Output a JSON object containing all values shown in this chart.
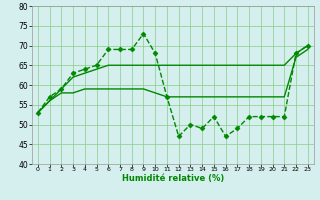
{
  "xlabel": "Humidité relative (%)",
  "xlim": [
    -0.5,
    23.5
  ],
  "ylim": [
    40,
    80
  ],
  "xticks": [
    0,
    1,
    2,
    3,
    4,
    5,
    6,
    7,
    8,
    9,
    10,
    11,
    12,
    13,
    14,
    15,
    16,
    17,
    18,
    19,
    20,
    21,
    22,
    23
  ],
  "yticks": [
    40,
    45,
    50,
    55,
    60,
    65,
    70,
    75,
    80
  ],
  "background_color": "#d5eeee",
  "grid_color": "#88cc88",
  "line_color": "#008800",
  "lines": [
    {
      "x": [
        0,
        1,
        2,
        3,
        4,
        5,
        6,
        7,
        8,
        9,
        10,
        11,
        12,
        13,
        14,
        15,
        16,
        17,
        18,
        19,
        20,
        21,
        22,
        23
      ],
      "y": [
        53,
        57,
        59,
        63,
        64,
        65,
        69,
        69,
        69,
        73,
        68,
        57,
        47,
        50,
        49,
        52,
        47,
        49,
        52,
        52,
        52,
        52,
        68,
        70
      ],
      "marker": "D",
      "markersize": 2.5,
      "linewidth": 1.0,
      "linestyle": "--"
    },
    {
      "x": [
        0,
        1,
        2,
        3,
        4,
        5,
        6,
        7,
        8,
        9,
        10,
        11,
        12,
        13,
        14,
        15,
        16,
        17,
        18,
        19,
        20,
        21,
        22,
        23
      ],
      "y": [
        53,
        56,
        59,
        62,
        63,
        64,
        65,
        65,
        65,
        65,
        65,
        65,
        65,
        65,
        65,
        65,
        65,
        65,
        65,
        65,
        65,
        65,
        68,
        70
      ],
      "marker": null,
      "markersize": 0,
      "linewidth": 1.0,
      "linestyle": "-"
    },
    {
      "x": [
        0,
        1,
        2,
        3,
        4,
        5,
        6,
        7,
        8,
        9,
        10,
        11,
        12,
        13,
        14,
        15,
        16,
        17,
        18,
        19,
        20,
        21,
        22,
        23
      ],
      "y": [
        53,
        56,
        58,
        58,
        59,
        59,
        59,
        59,
        59,
        59,
        58,
        57,
        57,
        57,
        57,
        57,
        57,
        57,
        57,
        57,
        57,
        57,
        67,
        69
      ],
      "marker": null,
      "markersize": 0,
      "linewidth": 1.0,
      "linestyle": "-"
    }
  ]
}
